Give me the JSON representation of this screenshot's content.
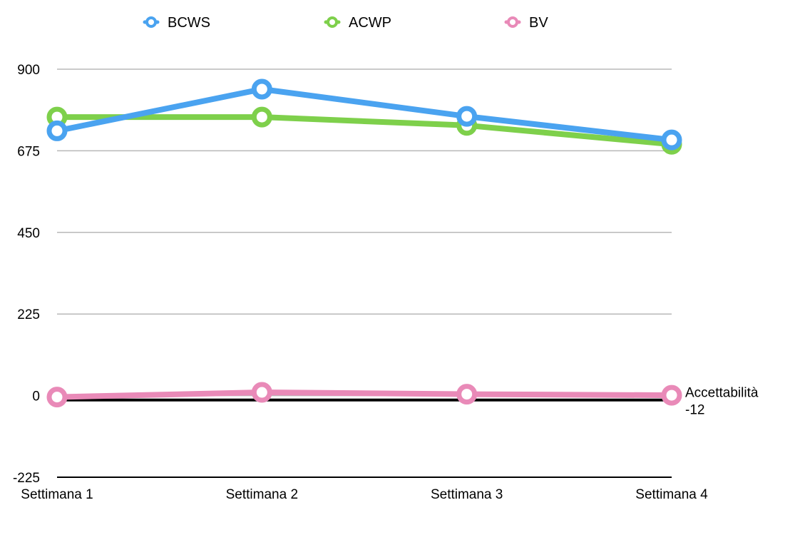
{
  "chart_data": {
    "type": "line",
    "categories": [
      "Settimana 1",
      "Settimana 2",
      "Settimana 3",
      "Settimana 4"
    ],
    "series": [
      {
        "name": "BCWS",
        "color": "#4aa3f0",
        "values": [
          730,
          845,
          770,
          705
        ]
      },
      {
        "name": "ACWP",
        "color": "#7ed04b",
        "values": [
          768,
          768,
          745,
          693
        ]
      },
      {
        "name": "BV",
        "color": "#e98ab8",
        "values": [
          -4,
          9,
          4,
          1
        ]
      }
    ],
    "reference_line": {
      "label_line1": "Accettabilità",
      "label_line2": "-12",
      "value": -12,
      "color": "#000000"
    },
    "y_ticks": [
      -225,
      0,
      225,
      450,
      675,
      900
    ],
    "ylim": [
      -225,
      900
    ],
    "grid": true,
    "legend_position": "top"
  }
}
